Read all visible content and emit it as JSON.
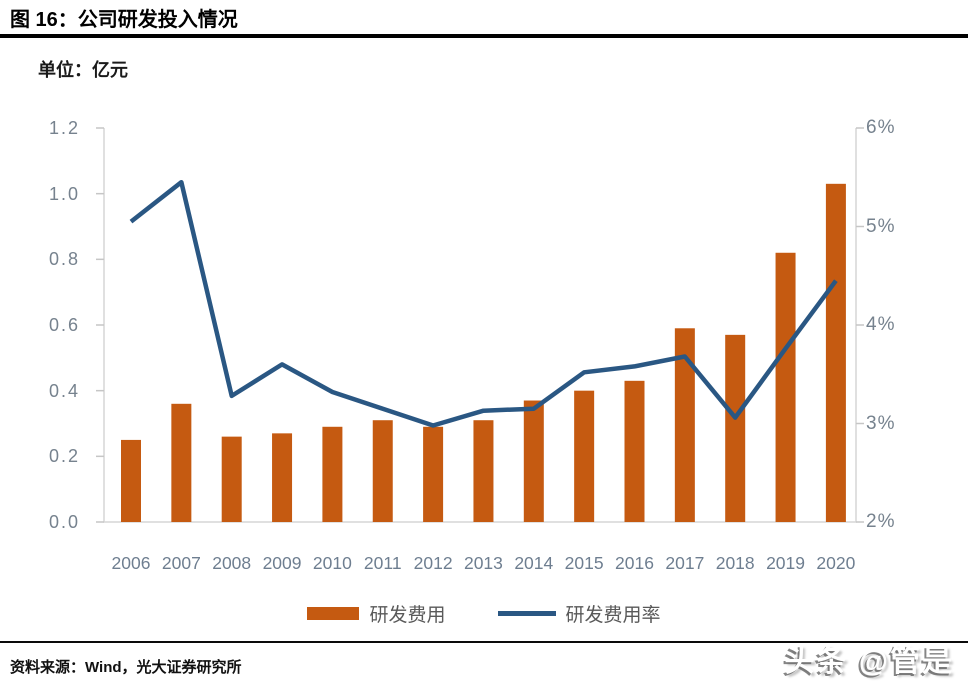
{
  "figure": {
    "title": "图 16：公司研发投入情况",
    "unit_label": "单位：亿元",
    "source": "资料来源：Wind，光大证券研究所",
    "watermark": "头条 @管是"
  },
  "legend": {
    "items": [
      {
        "label": "研发费用",
        "swatch": "bar-swatch"
      },
      {
        "label": "研发费用率",
        "swatch": "line-swatch"
      }
    ]
  },
  "colors": {
    "bar": "#C55A11",
    "line": "#2A5783",
    "plot_border": "#D6D6D6",
    "tick": "#C6C6C6",
    "tick_label": "#76828E",
    "x_label": "#6E7E90",
    "legend_text": "#595959",
    "rule": "#000000"
  },
  "chart_data": {
    "type": "combo-bar-line",
    "title": "图 16：公司研发投入情况",
    "unit": "亿元",
    "grid": false,
    "legend_position": "bottom",
    "categories": [
      "2006",
      "2007",
      "2008",
      "2009",
      "2010",
      "2011",
      "2012",
      "2013",
      "2014",
      "2015",
      "2016",
      "2017",
      "2018",
      "2019",
      "2020"
    ],
    "series": [
      {
        "name": "研发费用",
        "type": "bar",
        "axis": "left",
        "values": [
          0.25,
          0.36,
          0.26,
          0.27,
          0.29,
          0.31,
          0.29,
          0.31,
          0.37,
          0.4,
          0.43,
          0.59,
          0.57,
          0.82,
          1.03
        ]
      },
      {
        "name": "研发费用率",
        "type": "line",
        "axis": "right",
        "values": [
          5.05,
          5.45,
          3.28,
          3.6,
          3.32,
          3.15,
          2.98,
          3.13,
          3.15,
          3.52,
          3.58,
          3.68,
          3.06,
          3.76,
          4.45
        ]
      }
    ],
    "left_axis": {
      "min": 0,
      "max": 1.2,
      "tick_step": 0.2,
      "tick_labels": [
        "0.0",
        "0.2",
        "0.4",
        "0.6",
        "0.8",
        "1.0",
        "1.2"
      ]
    },
    "right_axis": {
      "min": 2,
      "max": 6,
      "tick_step": 1,
      "tick_labels": [
        "2%",
        "3%",
        "4%",
        "5%",
        "6%"
      ]
    }
  }
}
